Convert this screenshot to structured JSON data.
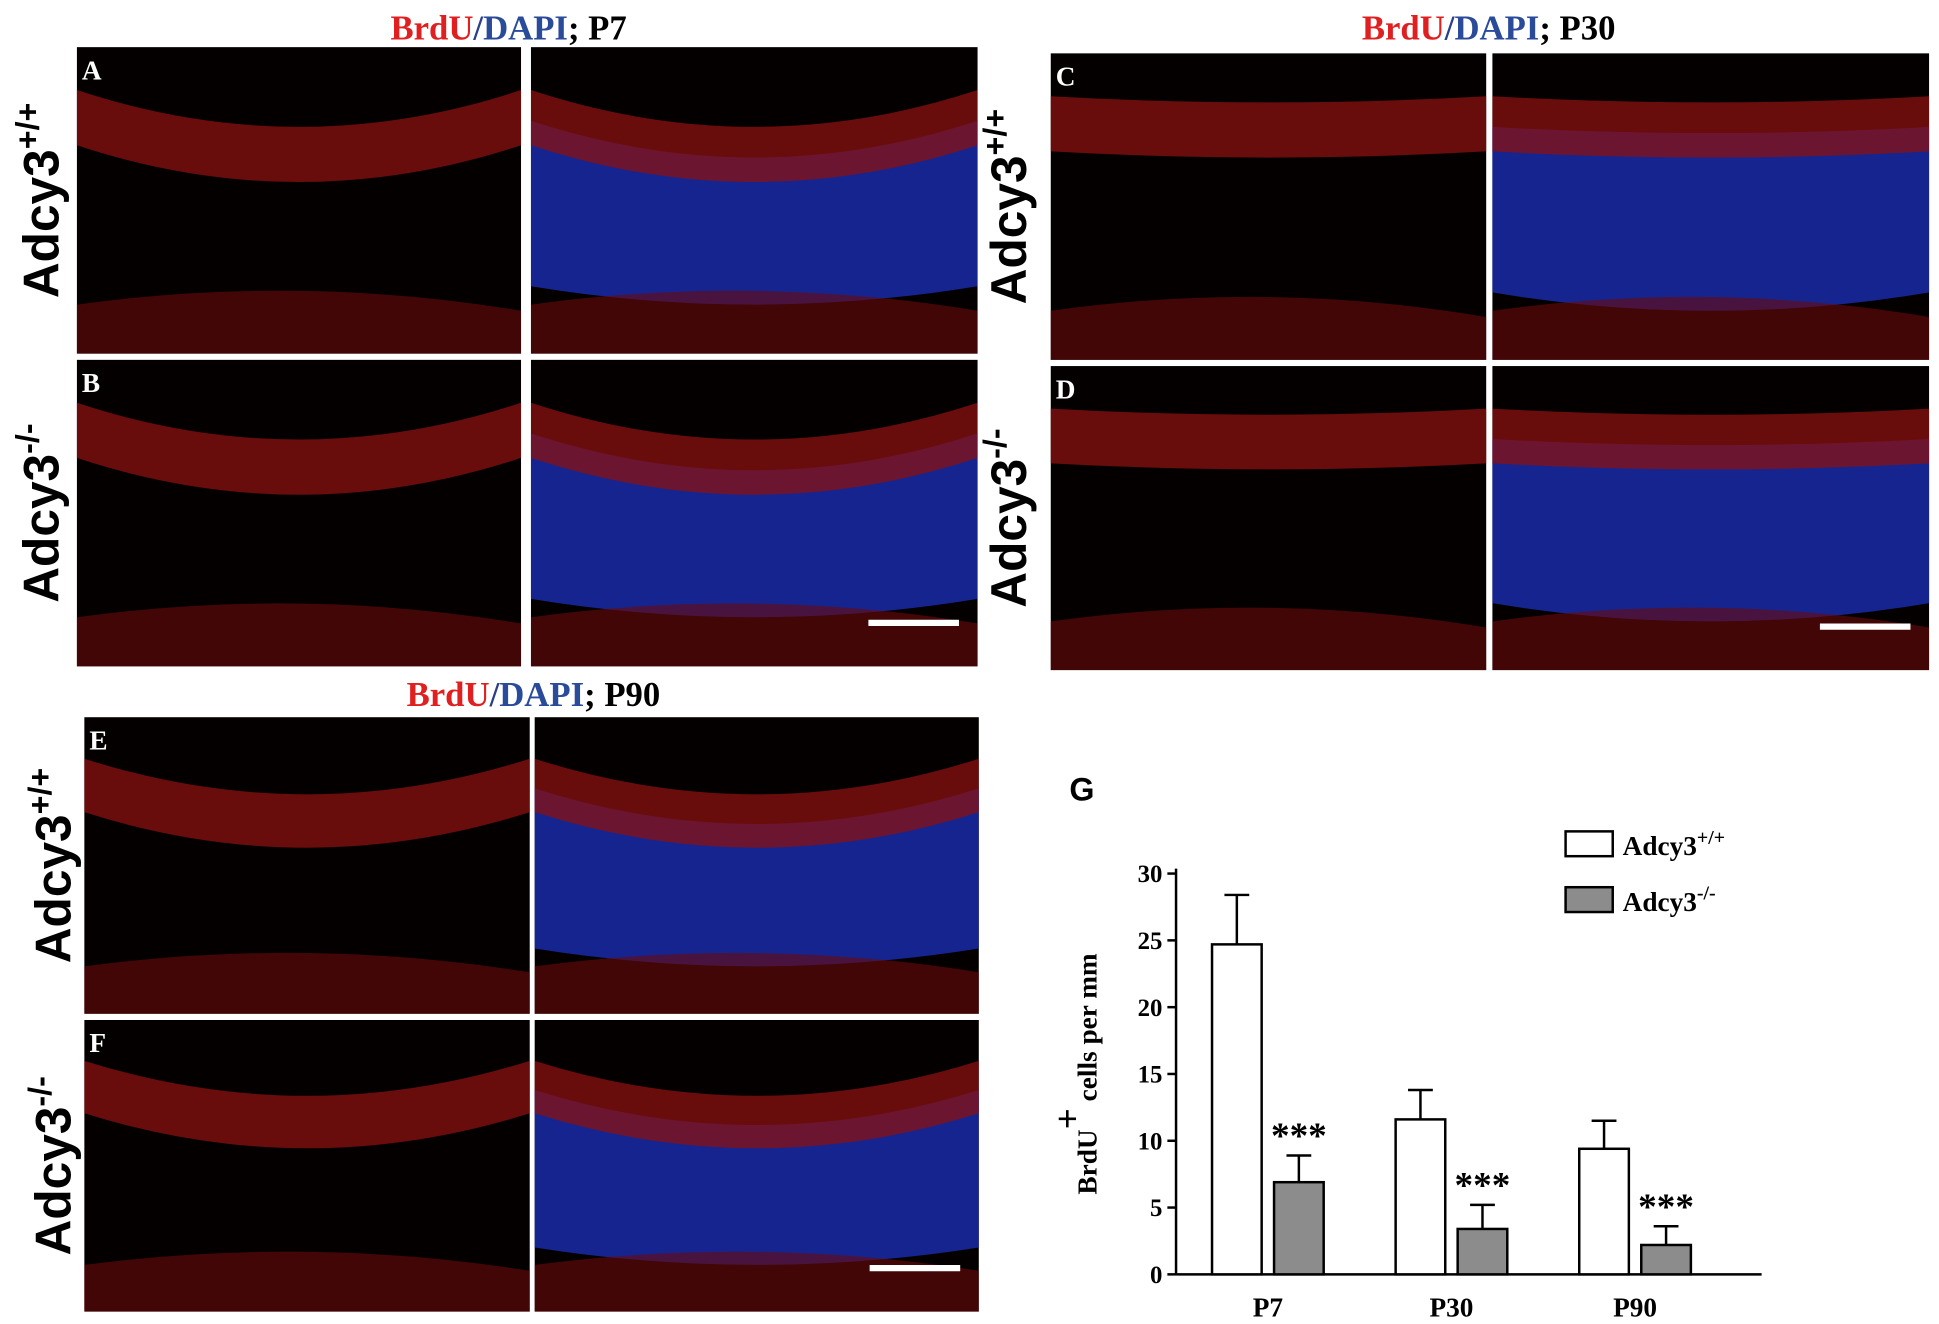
{
  "figure": {
    "groups": [
      {
        "title": {
          "brdu": "BrdU",
          "sep": "/",
          "dapi": "DAPI",
          "stage": "; P7"
        },
        "panels": [
          {
            "letter": "A",
            "genotype": "Adcy3",
            "sup": "+/+"
          },
          {
            "letter": "B",
            "genotype": "Adcy3",
            "sup": "-/-"
          }
        ]
      },
      {
        "title": {
          "brdu": "BrdU",
          "sep": "/",
          "dapi": "DAPI",
          "stage": "; P30"
        },
        "panels": [
          {
            "letter": "C",
            "genotype": "Adcy3",
            "sup": "+/+"
          },
          {
            "letter": "D",
            "genotype": "Adcy3",
            "sup": "-/-"
          }
        ]
      },
      {
        "title": {
          "brdu": "BrdU",
          "sep": "/",
          "dapi": "DAPI",
          "stage": ";  P90"
        },
        "panels": [
          {
            "letter": "E",
            "genotype": "Adcy3",
            "sup": "+/+"
          },
          {
            "letter": "F",
            "genotype": "Adcy3",
            "sup": "-/-"
          }
        ]
      }
    ]
  },
  "chart_data": {
    "type": "bar",
    "panel_label": "G",
    "ylabel": "BrdU",
    "ylabel_sup": "+",
    "ylabel_rest": " cells per mm",
    "categories": [
      "P7",
      "P30",
      "P90"
    ],
    "series": [
      {
        "name": "Adcy3",
        "name_sup": "+/+",
        "color": "#ffffff",
        "values": [
          24.7,
          11.6,
          9.4
        ],
        "errors": [
          3.7,
          2.2,
          2.1
        ]
      },
      {
        "name": "Adcy3",
        "name_sup": "-/-",
        "color": "#8c8c8c",
        "values": [
          6.9,
          3.4,
          2.2
        ],
        "errors": [
          2.0,
          1.8,
          1.4
        ],
        "annotations": [
          "***",
          "***",
          "***"
        ]
      }
    ],
    "ylim": [
      0,
      30
    ],
    "yticks": [
      0,
      5,
      10,
      15,
      20,
      25,
      30
    ],
    "grid": false
  }
}
